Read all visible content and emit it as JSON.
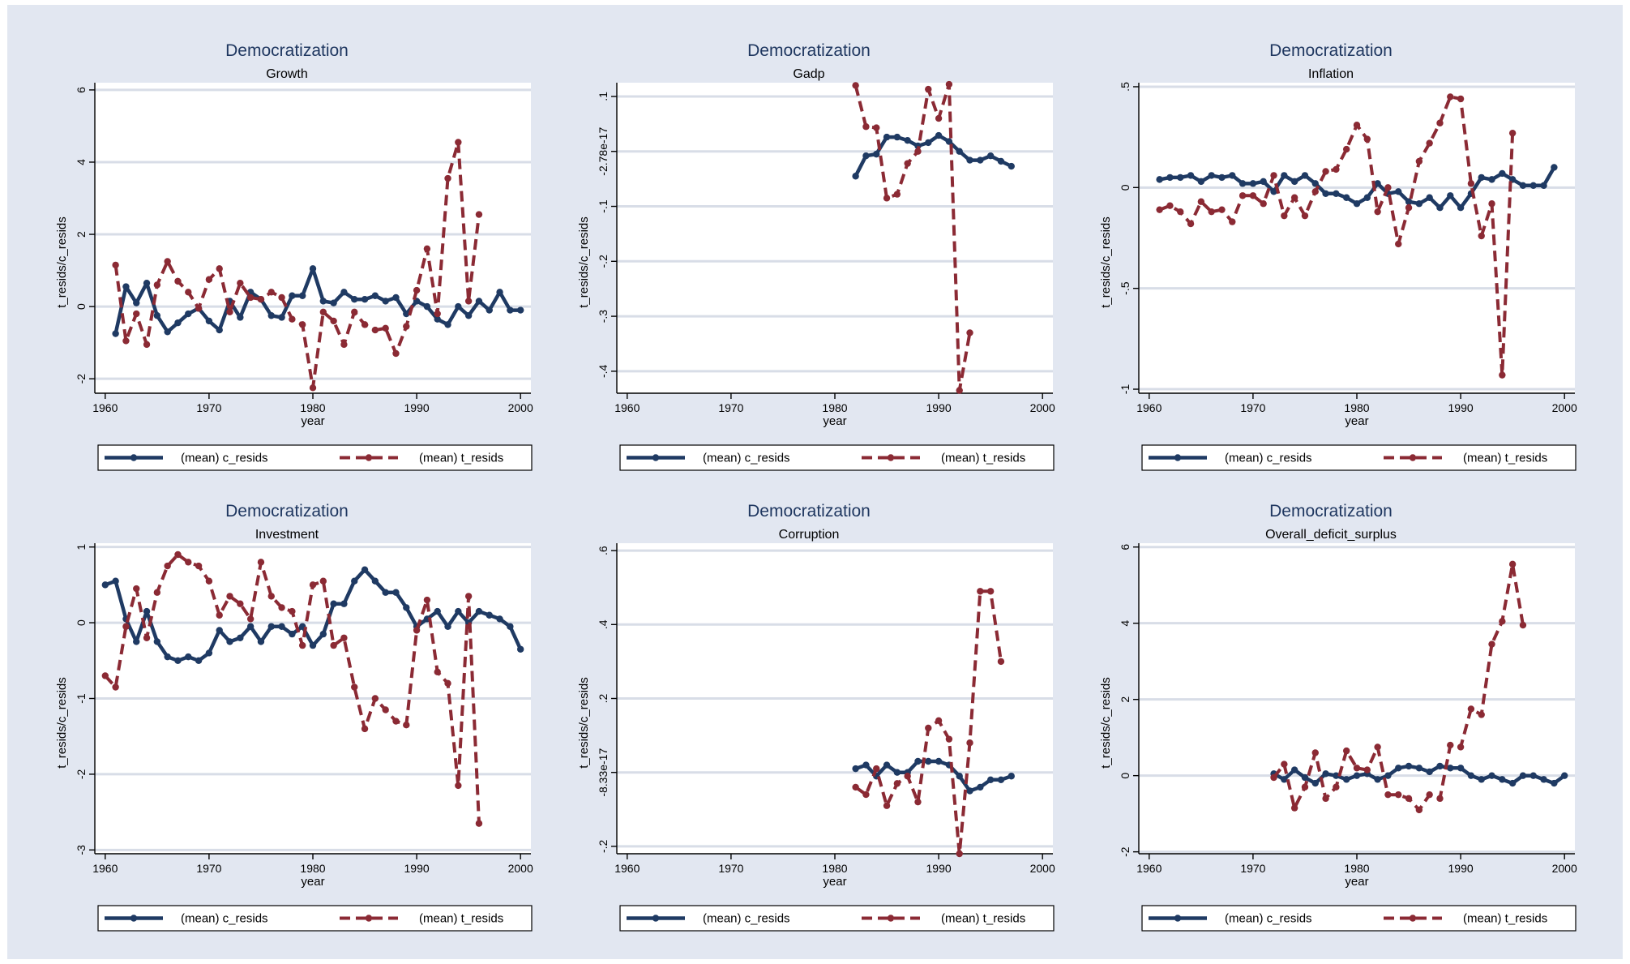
{
  "colors": {
    "figure_bg": "#e2e7f1",
    "c_resids": "#1f3a63",
    "t_resids": "#8b2a34",
    "title": "#1f3760"
  },
  "chart_data": [
    {
      "type": "line",
      "title": "Democratization",
      "subtitle": "Growth",
      "xlabel": "year",
      "ylabel": "t_resids/c_resids",
      "xlim": [
        1959,
        2001
      ],
      "ylim": [
        -2.4,
        6.2
      ],
      "xticks": [
        1960,
        1970,
        1980,
        1990,
        2000
      ],
      "yticks": [
        -2,
        0,
        2,
        4,
        6
      ],
      "ytick_labels": [
        "-2",
        "0",
        "2",
        "4",
        "6"
      ],
      "grid": true,
      "legend": "bottom",
      "series": [
        {
          "name": "(mean) c_resids",
          "style": "solid",
          "x": [
            1961,
            1962,
            1963,
            1964,
            1965,
            1966,
            1967,
            1968,
            1969,
            1970,
            1971,
            1972,
            1973,
            1974,
            1975,
            1976,
            1977,
            1978,
            1979,
            1980,
            1981,
            1982,
            1983,
            1984,
            1985,
            1986,
            1987,
            1988,
            1989,
            1990,
            1991,
            1992,
            1993,
            1994,
            1995,
            1996,
            1997,
            1998,
            1999,
            2000
          ],
          "y": [
            -0.75,
            0.55,
            0.1,
            0.65,
            -0.25,
            -0.7,
            -0.45,
            -0.2,
            -0.05,
            -0.4,
            -0.65,
            0.15,
            -0.3,
            0.4,
            0.2,
            -0.25,
            -0.3,
            0.3,
            0.3,
            1.05,
            0.15,
            0.1,
            0.4,
            0.2,
            0.2,
            0.3,
            0.15,
            0.25,
            -0.2,
            0.15,
            0.0,
            -0.35,
            -0.5,
            0.0,
            -0.25,
            0.15,
            -0.1,
            0.4,
            -0.1,
            -0.1
          ]
        },
        {
          "name": "(mean) t_resids",
          "style": "dashed",
          "x": [
            1961,
            1962,
            1963,
            1964,
            1965,
            1966,
            1967,
            1968,
            1969,
            1970,
            1971,
            1972,
            1973,
            1974,
            1975,
            1976,
            1977,
            1978,
            1979,
            1980,
            1981,
            1982,
            1983,
            1984,
            1985,
            1986,
            1987,
            1988,
            1989,
            1990,
            1991,
            1992,
            1993,
            1994,
            1995,
            1996
          ],
          "y": [
            1.15,
            -0.95,
            -0.2,
            -1.05,
            0.6,
            1.25,
            0.7,
            0.4,
            -0.05,
            0.75,
            1.05,
            -0.15,
            0.65,
            0.25,
            0.2,
            0.4,
            0.25,
            -0.35,
            -0.5,
            -2.25,
            -0.15,
            -0.4,
            -1.05,
            -0.15,
            -0.5,
            -0.65,
            -0.6,
            -1.3,
            -0.55,
            0.45,
            1.6,
            -0.2,
            3.55,
            4.55,
            0.15,
            2.55
          ]
        }
      ]
    },
    {
      "type": "line",
      "title": "Democratization",
      "subtitle": "Gadp",
      "xlabel": "year",
      "ylabel": "t_resids/c_resids",
      "xlim": [
        1959,
        2001
      ],
      "ylim": [
        -0.44,
        0.125
      ],
      "xticks": [
        1960,
        1970,
        1980,
        1990,
        2000
      ],
      "yticks": [
        -0.4,
        -0.3,
        -0.2,
        -0.1,
        0,
        0.1
      ],
      "ytick_labels": [
        "-.4",
        "-.3",
        "-.2",
        "-.1",
        "-2.78e-17",
        ".1"
      ],
      "grid": true,
      "legend": "bottom",
      "series": [
        {
          "name": "(mean) c_resids",
          "style": "solid",
          "x": [
            1982,
            1983,
            1984,
            1985,
            1986,
            1987,
            1988,
            1989,
            1990,
            1991,
            1992,
            1993,
            1994,
            1995,
            1996,
            1997
          ],
          "y": [
            -0.045,
            -0.008,
            -0.005,
            0.026,
            0.026,
            0.02,
            0.01,
            0.016,
            0.029,
            0.018,
            0.0,
            -0.016,
            -0.016,
            -0.008,
            -0.018,
            -0.027
          ]
        },
        {
          "name": "(mean) t_resids",
          "style": "dashed",
          "x": [
            1982,
            1983,
            1984,
            1985,
            1986,
            1987,
            1988,
            1989,
            1990,
            1991,
            1992,
            1993
          ],
          "y": [
            0.12,
            0.045,
            0.043,
            -0.085,
            -0.078,
            -0.022,
            0.0,
            0.113,
            0.06,
            0.122,
            -0.435,
            -0.33
          ]
        }
      ]
    },
    {
      "type": "line",
      "title": "Democratization",
      "subtitle": "Inflation",
      "xlabel": "year",
      "ylabel": "t_resids/c_resids",
      "xlim": [
        1959,
        2001
      ],
      "ylim": [
        -1.02,
        0.52
      ],
      "xticks": [
        1960,
        1970,
        1980,
        1990,
        2000
      ],
      "yticks": [
        -1,
        -0.5,
        0,
        0.5
      ],
      "ytick_labels": [
        "-1",
        "-.5",
        "0",
        ".5"
      ],
      "grid": true,
      "legend": "bottom",
      "series": [
        {
          "name": "(mean) c_resids",
          "style": "solid",
          "x": [
            1961,
            1962,
            1963,
            1964,
            1965,
            1966,
            1967,
            1968,
            1969,
            1970,
            1971,
            1972,
            1973,
            1974,
            1975,
            1976,
            1977,
            1978,
            1979,
            1980,
            1981,
            1982,
            1983,
            1984,
            1985,
            1986,
            1987,
            1988,
            1989,
            1990,
            1991,
            1992,
            1993,
            1994,
            1995,
            1996,
            1997,
            1998,
            1999
          ],
          "y": [
            0.04,
            0.05,
            0.05,
            0.06,
            0.03,
            0.06,
            0.05,
            0.06,
            0.02,
            0.02,
            0.03,
            -0.02,
            0.06,
            0.03,
            0.06,
            0.02,
            -0.03,
            -0.03,
            -0.05,
            -0.08,
            -0.05,
            0.02,
            -0.03,
            -0.02,
            -0.07,
            -0.08,
            -0.05,
            -0.1,
            -0.04,
            -0.1,
            -0.03,
            0.05,
            0.04,
            0.07,
            0.04,
            0.01,
            0.01,
            0.01,
            0.1
          ]
        },
        {
          "name": "(mean) t_resids",
          "style": "dashed",
          "x": [
            1961,
            1962,
            1963,
            1964,
            1965,
            1966,
            1967,
            1968,
            1969,
            1970,
            1971,
            1972,
            1973,
            1974,
            1975,
            1976,
            1977,
            1978,
            1979,
            1980,
            1981,
            1982,
            1983,
            1984,
            1985,
            1986,
            1987,
            1988,
            1989,
            1990,
            1991,
            1992,
            1993,
            1994,
            1995
          ],
          "y": [
            -0.11,
            -0.09,
            -0.12,
            -0.18,
            -0.07,
            -0.12,
            -0.11,
            -0.17,
            -0.04,
            -0.04,
            -0.08,
            0.06,
            -0.14,
            -0.05,
            -0.14,
            -0.02,
            0.08,
            0.09,
            0.19,
            0.31,
            0.24,
            -0.12,
            0.0,
            -0.28,
            -0.1,
            0.13,
            0.22,
            0.32,
            0.45,
            0.44,
            0.02,
            -0.24,
            -0.08,
            -0.93,
            0.27
          ]
        }
      ]
    },
    {
      "type": "line",
      "title": "Democratization",
      "subtitle": "Investment",
      "xlabel": "year",
      "ylabel": "t_resids/c_resids",
      "xlim": [
        1959,
        2001
      ],
      "ylim": [
        -3.05,
        1.05
      ],
      "xticks": [
        1960,
        1970,
        1980,
        1990,
        2000
      ],
      "yticks": [
        -3,
        -2,
        -1,
        0,
        1
      ],
      "ytick_labels": [
        "-3",
        "-2",
        "-1",
        "0",
        "1"
      ],
      "grid": true,
      "legend": "bottom",
      "series": [
        {
          "name": "(mean) c_resids",
          "style": "solid",
          "x": [
            1960,
            1961,
            1962,
            1963,
            1964,
            1965,
            1966,
            1967,
            1968,
            1969,
            1970,
            1971,
            1972,
            1973,
            1974,
            1975,
            1976,
            1977,
            1978,
            1979,
            1980,
            1981,
            1982,
            1983,
            1984,
            1985,
            1986,
            1987,
            1988,
            1989,
            1990,
            1991,
            1992,
            1993,
            1994,
            1995,
            1996,
            1997,
            1998,
            1999,
            2000
          ],
          "y": [
            0.5,
            0.55,
            0.05,
            -0.25,
            0.15,
            -0.25,
            -0.45,
            -0.5,
            -0.45,
            -0.5,
            -0.4,
            -0.1,
            -0.25,
            -0.2,
            -0.05,
            -0.25,
            -0.05,
            -0.05,
            -0.15,
            -0.05,
            -0.3,
            -0.15,
            0.25,
            0.25,
            0.55,
            0.7,
            0.55,
            0.4,
            0.4,
            0.2,
            -0.05,
            0.05,
            0.15,
            -0.05,
            0.15,
            0.0,
            0.15,
            0.1,
            0.05,
            -0.05,
            -0.35
          ]
        },
        {
          "name": "(mean) t_resids",
          "style": "dashed",
          "x": [
            1960,
            1961,
            1962,
            1963,
            1964,
            1965,
            1966,
            1967,
            1968,
            1969,
            1970,
            1971,
            1972,
            1973,
            1974,
            1975,
            1976,
            1977,
            1978,
            1979,
            1980,
            1981,
            1982,
            1983,
            1984,
            1985,
            1986,
            1987,
            1988,
            1989,
            1990,
            1991,
            1992,
            1993,
            1994,
            1995,
            1996
          ],
          "y": [
            -0.7,
            -0.85,
            -0.05,
            0.45,
            -0.2,
            0.4,
            0.75,
            0.9,
            0.8,
            0.75,
            0.55,
            0.1,
            0.35,
            0.25,
            0.05,
            0.8,
            0.35,
            0.2,
            0.15,
            -0.3,
            0.5,
            0.55,
            -0.3,
            -0.2,
            -0.85,
            -1.4,
            -1.0,
            -1.15,
            -1.3,
            -1.35,
            -0.1,
            0.3,
            -0.65,
            -0.8,
            -2.15,
            0.35,
            -2.65
          ]
        }
      ]
    },
    {
      "type": "line",
      "title": "Democratization",
      "subtitle": "Corruption",
      "xlabel": "year",
      "ylabel": "t_resids/c_resids",
      "xlim": [
        1959,
        2001
      ],
      "ylim": [
        -0.22,
        0.62
      ],
      "xticks": [
        1960,
        1970,
        1980,
        1990,
        2000
      ],
      "yticks": [
        -0.2,
        0,
        0.2,
        0.4,
        0.6
      ],
      "ytick_labels": [
        "-.2",
        "-8.33e-17",
        ".2",
        ".4",
        ".6"
      ],
      "grid": true,
      "legend": "bottom",
      "series": [
        {
          "name": "(mean) c_resids",
          "style": "solid",
          "x": [
            1982,
            1983,
            1984,
            1985,
            1986,
            1987,
            1988,
            1989,
            1990,
            1991,
            1992,
            1993,
            1994,
            1995,
            1996,
            1997
          ],
          "y": [
            0.01,
            0.02,
            -0.01,
            0.02,
            0.0,
            0.0,
            0.03,
            0.03,
            0.03,
            0.02,
            -0.01,
            -0.05,
            -0.04,
            -0.02,
            -0.02,
            -0.01
          ]
        },
        {
          "name": "(mean) t_resids",
          "style": "dashed",
          "x": [
            1982,
            1983,
            1984,
            1985,
            1986,
            1987,
            1988,
            1989,
            1990,
            1991,
            1992,
            1993,
            1994,
            1995,
            1996
          ],
          "y": [
            -0.04,
            -0.06,
            0.01,
            -0.09,
            -0.03,
            -0.01,
            -0.08,
            0.12,
            0.14,
            0.09,
            -0.22,
            0.08,
            0.49,
            0.49,
            0.3
          ]
        }
      ]
    },
    {
      "type": "line",
      "title": "Democratization",
      "subtitle": "Overall_deficit_surplus",
      "xlabel": "year",
      "ylabel": "t_resids/c_resids",
      "xlim": [
        1959,
        2001
      ],
      "ylim": [
        -2.05,
        6.1
      ],
      "xticks": [
        1960,
        1970,
        1980,
        1990,
        2000
      ],
      "yticks": [
        -2,
        0,
        2,
        4,
        6
      ],
      "ytick_labels": [
        "-2",
        "0",
        "2",
        "4",
        "6"
      ],
      "grid": true,
      "legend": "bottom",
      "series": [
        {
          "name": "(mean) c_resids",
          "style": "solid",
          "x": [
            1972,
            1973,
            1974,
            1975,
            1976,
            1977,
            1978,
            1979,
            1980,
            1981,
            1982,
            1983,
            1984,
            1985,
            1986,
            1987,
            1988,
            1989,
            1990,
            1991,
            1992,
            1993,
            1994,
            1995,
            1996,
            1997,
            1998,
            1999,
            2000
          ],
          "y": [
            0.05,
            -0.1,
            0.15,
            -0.05,
            -0.2,
            0.05,
            0.0,
            -0.1,
            0.0,
            0.05,
            -0.1,
            0.0,
            0.2,
            0.25,
            0.2,
            0.1,
            0.25,
            0.2,
            0.2,
            0.0,
            -0.1,
            0.0,
            -0.1,
            -0.2,
            0.0,
            0.0,
            -0.1,
            -0.2,
            0.0
          ]
        },
        {
          "name": "(mean) t_resids",
          "style": "dashed",
          "x": [
            1972,
            1973,
            1974,
            1975,
            1976,
            1977,
            1978,
            1979,
            1980,
            1981,
            1982,
            1983,
            1984,
            1985,
            1986,
            1987,
            1988,
            1989,
            1990,
            1991,
            1992,
            1993,
            1994,
            1995,
            1996
          ],
          "y": [
            -0.05,
            0.3,
            -0.85,
            -0.3,
            0.6,
            -0.6,
            -0.3,
            0.65,
            0.2,
            0.15,
            0.75,
            -0.5,
            -0.5,
            -0.6,
            -0.9,
            -0.5,
            -0.6,
            0.8,
            0.75,
            1.75,
            1.6,
            3.45,
            4.05,
            5.55,
            3.95
          ]
        }
      ]
    }
  ]
}
